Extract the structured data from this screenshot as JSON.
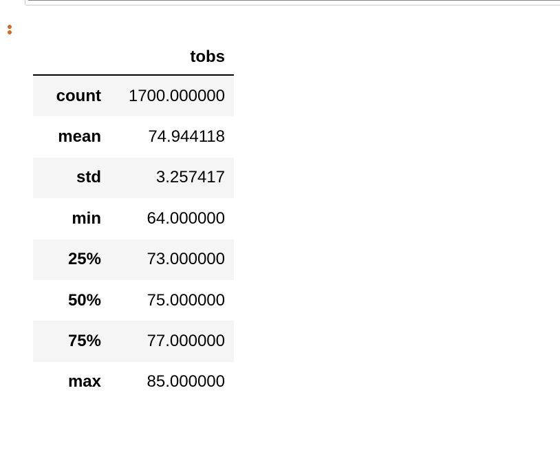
{
  "table": {
    "index_header": "",
    "columns": [
      "tobs"
    ],
    "rows": [
      {
        "index": "count",
        "value": "1700.000000"
      },
      {
        "index": "mean",
        "value": "74.944118"
      },
      {
        "index": "std",
        "value": "3.257417"
      },
      {
        "index": "min",
        "value": "64.000000"
      },
      {
        "index": "25%",
        "value": "73.000000"
      },
      {
        "index": "50%",
        "value": "75.000000"
      },
      {
        "index": "75%",
        "value": "77.000000"
      },
      {
        "index": "max",
        "value": "85.000000"
      }
    ]
  },
  "colors": {
    "cell_menu_dots": "#d2691e",
    "row_shade": "#f5f5f5",
    "header_rule": "#000000"
  },
  "icons": {
    "cell_menu": "vertical-ellipsis-icon"
  }
}
